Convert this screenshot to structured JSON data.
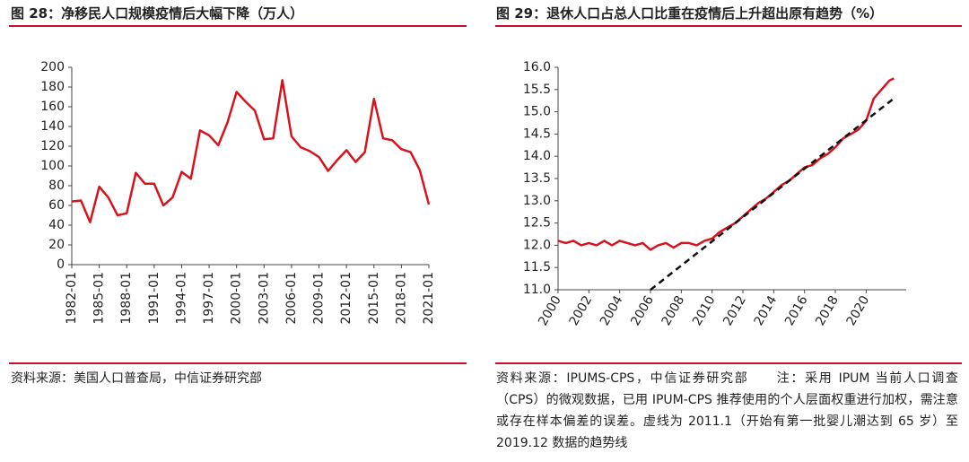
{
  "chart_data": [
    {
      "type": "line",
      "title": "图 28：净移民人口规模疫情后大幅下降（万人）",
      "source": "资料来源：美国人口普查局，中信证券研究部",
      "categories": [
        "1982-01",
        null,
        null,
        "1985-01",
        null,
        null,
        "1988-01",
        null,
        null,
        "1991-01",
        null,
        null,
        "1994-01",
        null,
        null,
        "1997-01",
        null,
        null,
        "2000-01",
        null,
        null,
        "2003-01",
        null,
        null,
        "2006-01",
        null,
        null,
        "2009-01",
        null,
        null,
        "2012-01",
        null,
        null,
        "2015-01",
        null,
        null,
        "2018-01",
        null,
        null,
        "2021-01"
      ],
      "series": [
        {
          "color": "#d7141e",
          "values": [
            64,
            65,
            43,
            79,
            68,
            50,
            52,
            93,
            82,
            82,
            60,
            68,
            94,
            87,
            136,
            131,
            121,
            144,
            175,
            165,
            156,
            127,
            128,
            187,
            130,
            119,
            115,
            109,
            95,
            106,
            116,
            104,
            114,
            168,
            128,
            126,
            117,
            114,
            96,
            61
          ]
        }
      ],
      "ylim": [
        0,
        200
      ],
      "yticks": [
        0,
        20,
        40,
        60,
        80,
        100,
        120,
        140,
        160,
        180,
        200
      ]
    },
    {
      "type": "line",
      "title": "图 29：退休人口占总人口比重在疫情后上升超出原有趋势（%）",
      "source": "资料来源：IPUMS-CPS，中信证券研究部　　注：采用 IPUM 当前人口调查（CPS）的微观数据，已用 IPUM-CPS 推荐使用的个人层面权重进行加权，需注意或存在样本偏差的误差。虚线为 2011.1（开始有第一批婴儿潮达到 65 岁）至 2019.12 数据的趋势线",
      "x": [
        2000,
        2000.5,
        2001,
        2001.5,
        2002,
        2002.5,
        2003,
        2003.5,
        2004,
        2004.5,
        2005,
        2005.5,
        2006,
        2006.5,
        2007,
        2007.5,
        2008,
        2008.5,
        2009,
        2009.5,
        2010,
        2010.5,
        2011,
        2011.5,
        2012,
        2012.5,
        2013,
        2013.5,
        2014,
        2014.5,
        2015,
        2015.5,
        2016,
        2016.5,
        2017,
        2017.5,
        2018,
        2018.5,
        2019,
        2019.5,
        2020,
        2020.5,
        2021,
        2021.5,
        2021.8
      ],
      "series": [
        {
          "color": "#d7141e",
          "values": [
            12.1,
            12.05,
            12.1,
            12.0,
            12.05,
            12.0,
            12.1,
            12.0,
            12.1,
            12.05,
            12.0,
            12.05,
            11.9,
            12.0,
            12.05,
            11.95,
            12.05,
            12.05,
            12.0,
            12.1,
            12.15,
            12.3,
            12.4,
            12.5,
            12.65,
            12.8,
            12.95,
            13.05,
            13.2,
            13.35,
            13.45,
            13.6,
            13.75,
            13.8,
            13.95,
            14.05,
            14.2,
            14.4,
            14.5,
            14.6,
            14.8,
            15.3,
            15.5,
            15.7,
            15.75
          ]
        },
        {
          "color": "#111111",
          "line_style": "dashed",
          "x": [
            2006,
            2021.8
          ],
          "values": [
            11.0,
            15.3
          ]
        }
      ],
      "xlim": [
        2000,
        2022.6
      ],
      "xticks": [
        2000,
        2002,
        2004,
        2006,
        2008,
        2010,
        2012,
        2014,
        2016,
        2018,
        2020
      ],
      "ylim": [
        11.0,
        16.0
      ],
      "yticks": [
        {
          "value": 11.0,
          "label": "11.0"
        },
        {
          "value": 11.5,
          "label": "11.5"
        },
        {
          "value": 12.0,
          "label": "12.0"
        },
        {
          "value": 12.5,
          "label": "12.5"
        },
        {
          "value": 13.0,
          "label": "13.0"
        },
        {
          "value": 13.5,
          "label": "13.5"
        },
        {
          "value": 14.0,
          "label": "14.0"
        },
        {
          "value": 14.5,
          "label": "14.5"
        },
        {
          "value": 15.0,
          "label": "15.0"
        },
        {
          "value": 15.5,
          "label": "15.5"
        },
        {
          "value": 16.0,
          "label": "16.0"
        }
      ]
    }
  ]
}
